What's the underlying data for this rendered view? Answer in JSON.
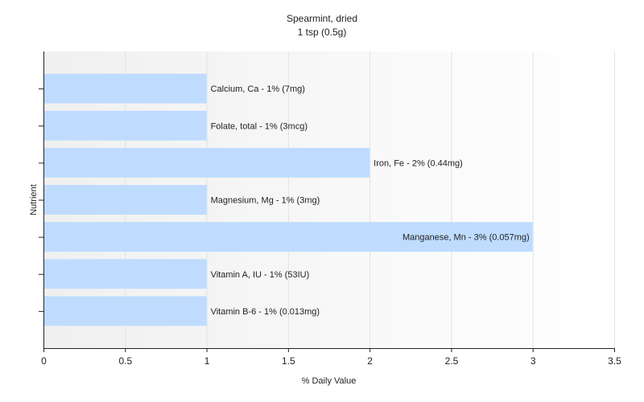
{
  "chart_data": {
    "type": "bar",
    "orientation": "horizontal",
    "title": "Spearmint, dried",
    "subtitle": "1 tsp (0.5g)",
    "xlabel": "% Daily Value",
    "ylabel": "Nutrient",
    "xlim": [
      0,
      3.5
    ],
    "xticks": [
      "0",
      "0.5",
      "1",
      "1.5",
      "2",
      "2.5",
      "3",
      "3.5"
    ],
    "xtick_values": [
      0,
      0.5,
      1,
      1.5,
      2,
      2.5,
      3,
      3.5
    ],
    "grid": true,
    "bar_color": "#bfdcff",
    "categories": [
      "Calcium, Ca",
      "Folate, total",
      "Iron, Fe",
      "Magnesium, Mg",
      "Manganese, Mn",
      "Vitamin A, IU",
      "Vitamin B-6"
    ],
    "values": [
      1,
      1,
      2,
      1,
      3,
      1,
      1
    ],
    "data_labels": [
      "Calcium, Ca - 1% (7mg)",
      "Folate, total - 1% (3mcg)",
      "Iron, Fe - 2% (0.44mg)",
      "Magnesium, Mg - 1% (3mg)",
      "Manganese, Mn - 3% (0.057mg)",
      "Vitamin A, IU - 1% (53IU)",
      "Vitamin B-6 - 1% (0.013mg)"
    ]
  }
}
